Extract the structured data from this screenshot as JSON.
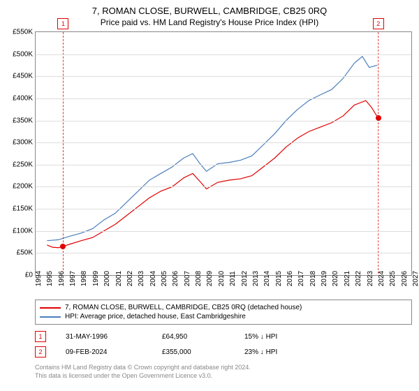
{
  "title": "7, ROMAN CLOSE, BURWELL, CAMBRIDGE, CB25 0RQ",
  "subtitle": "Price paid vs. HM Land Registry's House Price Index (HPI)",
  "chart": {
    "type": "line",
    "background_color": "#ffffff",
    "grid_color": "#dddddd",
    "border_color": "#888888",
    "x_year_min": 1994,
    "x_year_max": 2027,
    "x_tick_step": 1,
    "y_min": 0,
    "y_max": 550000,
    "y_tick_step": 50000,
    "y_prefix": "£",
    "y_suffix": "K",
    "label_fontsize": 10,
    "series": [
      {
        "name": "property",
        "color": "#e00000",
        "width": 1.2,
        "points": [
          [
            1995.0,
            68000
          ],
          [
            1995.5,
            63000
          ],
          [
            1996.0,
            62000
          ],
          [
            1996.42,
            64950
          ],
          [
            1997,
            70000
          ],
          [
            1998,
            78000
          ],
          [
            1999,
            85000
          ],
          [
            2000,
            100000
          ],
          [
            2001,
            115000
          ],
          [
            2002,
            135000
          ],
          [
            2003,
            155000
          ],
          [
            2004,
            175000
          ],
          [
            2005,
            190000
          ],
          [
            2006,
            200000
          ],
          [
            2007,
            220000
          ],
          [
            2007.8,
            230000
          ],
          [
            2008.5,
            210000
          ],
          [
            2009,
            195000
          ],
          [
            2010,
            210000
          ],
          [
            2011,
            215000
          ],
          [
            2012,
            218000
          ],
          [
            2013,
            225000
          ],
          [
            2014,
            245000
          ],
          [
            2015,
            265000
          ],
          [
            2016,
            290000
          ],
          [
            2017,
            310000
          ],
          [
            2018,
            325000
          ],
          [
            2019,
            335000
          ],
          [
            2020,
            345000
          ],
          [
            2021,
            360000
          ],
          [
            2022,
            385000
          ],
          [
            2023,
            395000
          ],
          [
            2023.5,
            380000
          ],
          [
            2024.1,
            355000
          ]
        ]
      },
      {
        "name": "hpi",
        "color": "#4a7ebb",
        "width": 1.2,
        "points": [
          [
            1995.0,
            78000
          ],
          [
            1996,
            80000
          ],
          [
            1997,
            88000
          ],
          [
            1998,
            95000
          ],
          [
            1999,
            105000
          ],
          [
            2000,
            125000
          ],
          [
            2001,
            140000
          ],
          [
            2002,
            165000
          ],
          [
            2003,
            190000
          ],
          [
            2004,
            215000
          ],
          [
            2005,
            230000
          ],
          [
            2006,
            245000
          ],
          [
            2007,
            265000
          ],
          [
            2007.8,
            275000
          ],
          [
            2008.5,
            250000
          ],
          [
            2009,
            235000
          ],
          [
            2010,
            252000
          ],
          [
            2011,
            255000
          ],
          [
            2012,
            260000
          ],
          [
            2013,
            270000
          ],
          [
            2014,
            295000
          ],
          [
            2015,
            320000
          ],
          [
            2016,
            350000
          ],
          [
            2017,
            375000
          ],
          [
            2018,
            395000
          ],
          [
            2019,
            408000
          ],
          [
            2020,
            420000
          ],
          [
            2021,
            445000
          ],
          [
            2022,
            480000
          ],
          [
            2022.7,
            495000
          ],
          [
            2023.3,
            470000
          ],
          [
            2024,
            475000
          ]
        ]
      }
    ],
    "sale_points": [
      {
        "num": "1",
        "year": 1996.42,
        "price": 64950,
        "color": "#e00000"
      },
      {
        "num": "2",
        "year": 2024.1,
        "price": 355000,
        "color": "#e00000"
      }
    ]
  },
  "legend": {
    "items": [
      {
        "color": "#e00000",
        "label": "7, ROMAN CLOSE, BURWELL, CAMBRIDGE, CB25 0RQ (detached house)"
      },
      {
        "color": "#4a7ebb",
        "label": "HPI: Average price, detached house, East Cambridgeshire"
      }
    ]
  },
  "sales": [
    {
      "num": "1",
      "color": "#e00000",
      "date": "31-MAY-1996",
      "price": "£64,950",
      "diff": "15% ↓ HPI"
    },
    {
      "num": "2",
      "color": "#e00000",
      "date": "09-FEB-2024",
      "price": "£355,000",
      "diff": "23% ↓ HPI"
    }
  ],
  "footer": {
    "line1": "Contains HM Land Registry data © Crown copyright and database right 2024.",
    "line2": "This data is licensed under the Open Government Licence v3.0."
  }
}
